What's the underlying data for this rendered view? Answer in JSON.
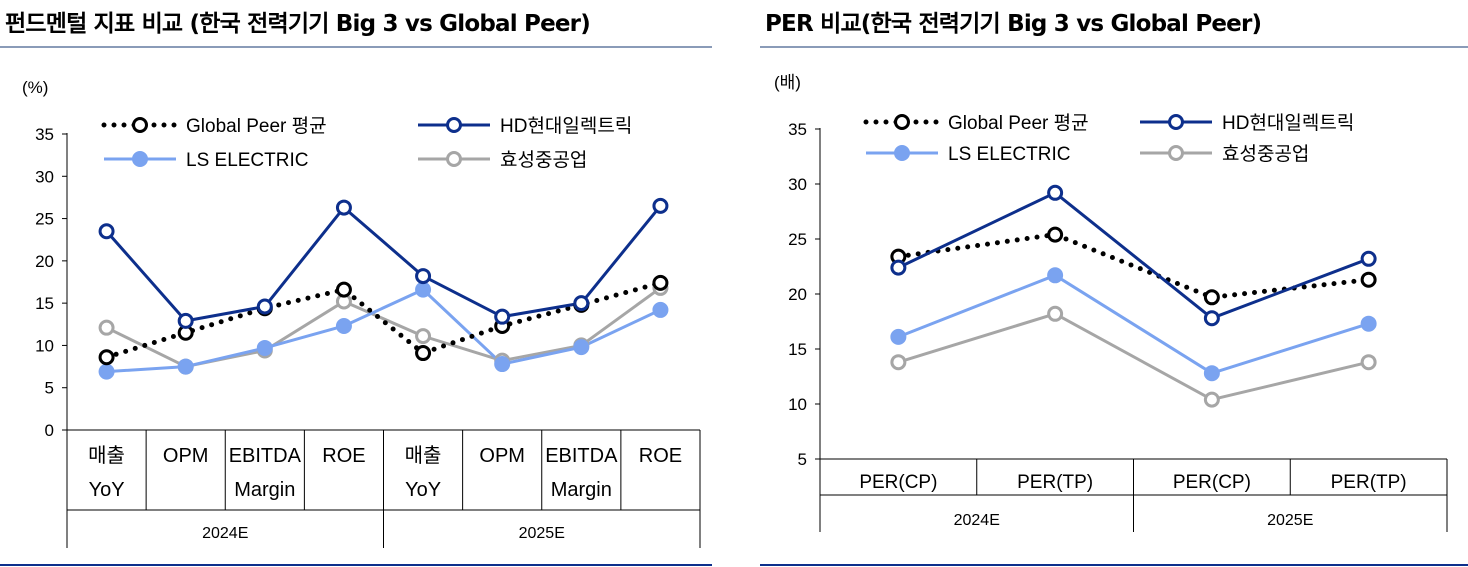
{
  "charts": [
    {
      "title": "펀드멘털 지표 비교 (한국 전력기기 Big 3 vs Global Peer)",
      "unit": "(%)",
      "type": "line",
      "y_ticks": [
        0,
        5,
        10,
        15,
        20,
        25,
        30,
        35
      ],
      "categories": [
        {
          "lines": [
            "매출",
            "YoY"
          ]
        },
        {
          "lines": [
            "OPM"
          ]
        },
        {
          "lines": [
            "EBITDA",
            "Margin"
          ]
        },
        {
          "lines": [
            "ROE"
          ]
        },
        {
          "lines": [
            "매출",
            "YoY"
          ]
        },
        {
          "lines": [
            "OPM"
          ]
        },
        {
          "lines": [
            "EBITDA",
            "Margin"
          ]
        },
        {
          "lines": [
            "ROE"
          ]
        }
      ],
      "groups": [
        "2024E",
        "2025E"
      ]
    },
    {
      "title": "PER 비교(한국 전력기기 Big 3 vs Global Peer)",
      "unit": "(배)",
      "type": "line",
      "y_ticks": [
        5,
        10,
        15,
        20,
        25,
        30,
        35
      ],
      "categories": [
        {
          "lines": [
            "PER(CP)"
          ]
        },
        {
          "lines": [
            "PER(TP)"
          ]
        },
        {
          "lines": [
            "PER(CP)"
          ]
        },
        {
          "lines": [
            "PER(TP)"
          ]
        }
      ],
      "groups": [
        "2024E",
        "2025E"
      ]
    }
  ],
  "series_style": [
    {
      "name": "Global Peer 평균",
      "color": "#000000",
      "style": "dotted",
      "filled": false
    },
    {
      "name": "HD현대일렉트릭",
      "color": "#0d2f8c",
      "style": "solid",
      "filled": false
    },
    {
      "name": "LS ELECTRIC",
      "color": "#7aa3f0",
      "style": "solid",
      "filled": true
    },
    {
      "name": "효성중공업",
      "color": "#a6a6a6",
      "style": "solid",
      "filled": false
    }
  ],
  "chart_data": [
    {
      "type": "line",
      "title": "펀드멘털 지표 비교 (한국 전력기기 Big 3 vs Global Peer)",
      "ylabel": "(%)",
      "ylim": [
        0,
        35
      ],
      "x_groups": [
        "2024E",
        "2025E"
      ],
      "categories": [
        "매출 YoY",
        "OPM",
        "EBITDA Margin",
        "ROE",
        "매출 YoY",
        "OPM",
        "EBITDA Margin",
        "ROE"
      ],
      "legend": "top",
      "series": [
        {
          "name": "Global Peer 평균",
          "values": [
            8.6,
            11.5,
            14.4,
            16.6,
            9.1,
            12.3,
            14.8,
            17.4
          ]
        },
        {
          "name": "HD현대일렉트릭",
          "values": [
            23.5,
            12.9,
            14.6,
            26.3,
            18.2,
            13.4,
            15.0,
            26.5
          ]
        },
        {
          "name": "LS ELECTRIC",
          "values": [
            6.9,
            7.5,
            9.7,
            12.3,
            16.6,
            7.8,
            9.8,
            14.2
          ]
        },
        {
          "name": "효성중공업",
          "values": [
            12.1,
            7.5,
            9.4,
            15.2,
            11.1,
            8.2,
            10.0,
            16.8
          ]
        }
      ]
    },
    {
      "type": "line",
      "title": "PER 비교(한국 전력기기 Big 3 vs Global Peer)",
      "ylabel": "(배)",
      "ylim": [
        5,
        35
      ],
      "x_groups": [
        "2024E",
        "2025E"
      ],
      "categories": [
        "PER(CP)",
        "PER(TP)",
        "PER(CP)",
        "PER(TP)"
      ],
      "legend": "top",
      "series": [
        {
          "name": "Global Peer 평균",
          "values": [
            23.4,
            25.4,
            19.7,
            21.3
          ]
        },
        {
          "name": "HD현대일렉트릭",
          "values": [
            22.4,
            29.2,
            17.8,
            23.2
          ]
        },
        {
          "name": "LS ELECTRIC",
          "values": [
            16.1,
            21.7,
            12.8,
            17.3
          ]
        },
        {
          "name": "효성중공업",
          "values": [
            13.8,
            18.2,
            10.4,
            13.8
          ]
        }
      ]
    }
  ]
}
